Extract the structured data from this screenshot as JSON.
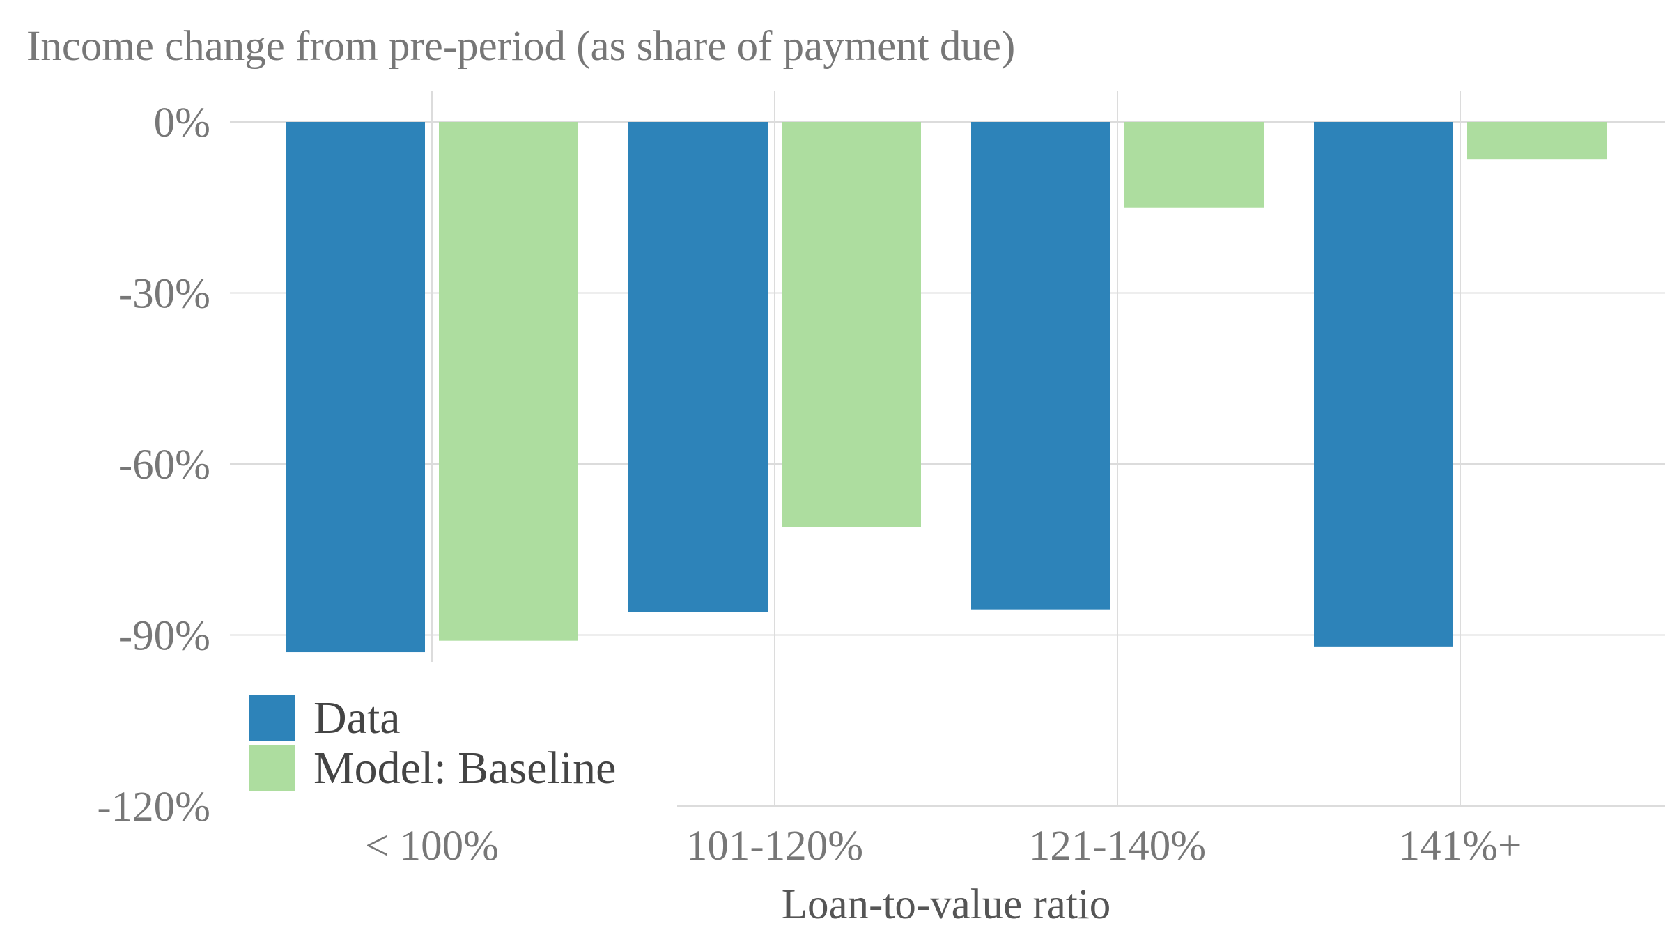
{
  "chart_data": {
    "type": "bar",
    "title": "Income change from pre-period (as share of payment due)",
    "xlabel": "Loan-to-value ratio",
    "ylabel": "",
    "categories": [
      "< 100%",
      "101-120%",
      "121-140%",
      "141%+"
    ],
    "series": [
      {
        "name": "Data",
        "color": "#2d83b9",
        "values": [
          -93,
          -86,
          -85.5,
          -92
        ]
      },
      {
        "name": "Model: Baseline",
        "color": "#addd9f",
        "values": [
          -91,
          -71,
          -15,
          -6.5
        ]
      }
    ],
    "ylim": [
      -120,
      0
    ],
    "yticks": [
      0,
      -30,
      -60,
      -90,
      -120
    ],
    "ytick_labels": [
      "0%",
      "-30%",
      "-60%",
      "-90%",
      "-120%"
    ],
    "grid": true,
    "legend_position": "bottom-left"
  }
}
